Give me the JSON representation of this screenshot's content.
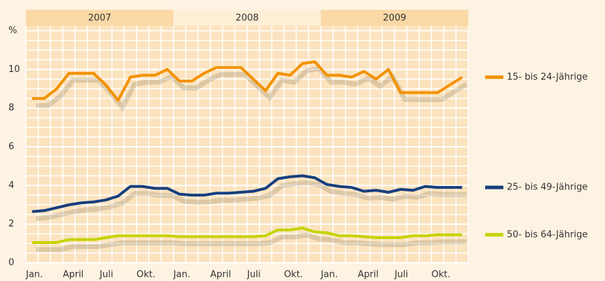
{
  "chart_data": {
    "type": "line",
    "y_axis_label": "%",
    "years": [
      "2007",
      "2008",
      "2009"
    ],
    "categories": [
      "Jan.",
      null,
      null,
      "April",
      null,
      null,
      "Juli",
      null,
      null,
      "Okt.",
      null,
      null,
      "Jan.",
      null,
      null,
      "April",
      null,
      null,
      "Juli",
      null,
      null,
      "Okt.",
      null,
      null,
      "Jan.",
      null,
      null,
      "April",
      null,
      null,
      "Juli",
      null,
      null,
      "Okt.",
      null,
      null
    ],
    "series": [
      {
        "name": "15- bis 24-Jährige",
        "color": "#f39200",
        "values": [
          8.5,
          8.5,
          9.0,
          9.8,
          9.8,
          9.8,
          9.2,
          8.4,
          9.6,
          9.7,
          9.7,
          10.0,
          9.4,
          9.4,
          9.8,
          10.1,
          10.1,
          10.1,
          9.5,
          8.9,
          9.8,
          9.7,
          10.3,
          10.4,
          9.7,
          9.7,
          9.6,
          9.9,
          9.5,
          10.0,
          8.8,
          8.8,
          8.8,
          8.8,
          9.2,
          9.6
        ]
      },
      {
        "name": "25- bis 49-Jährige",
        "color": "#173f7e",
        "values": [
          2.65,
          2.7,
          2.85,
          3.0,
          3.1,
          3.15,
          3.25,
          3.45,
          3.95,
          3.95,
          3.85,
          3.85,
          3.55,
          3.5,
          3.5,
          3.6,
          3.6,
          3.65,
          3.7,
          3.85,
          4.35,
          4.45,
          4.5,
          4.4,
          4.05,
          3.95,
          3.9,
          3.7,
          3.75,
          3.65,
          3.8,
          3.75,
          3.95,
          3.9,
          3.9,
          3.9
        ]
      },
      {
        "name": "50- bis 64-Jährige",
        "color": "#c6d300",
        "values": [
          1.05,
          1.05,
          1.05,
          1.2,
          1.2,
          1.2,
          1.3,
          1.4,
          1.4,
          1.4,
          1.4,
          1.4,
          1.35,
          1.35,
          1.35,
          1.35,
          1.35,
          1.35,
          1.35,
          1.4,
          1.7,
          1.7,
          1.8,
          1.6,
          1.55,
          1.4,
          1.4,
          1.35,
          1.3,
          1.3,
          1.3,
          1.4,
          1.4,
          1.45,
          1.45,
          1.45
        ]
      }
    ],
    "ylim": [
      0,
      12
    ],
    "yticks": [
      0,
      2,
      4,
      6,
      8,
      10
    ],
    "grid": true
  }
}
